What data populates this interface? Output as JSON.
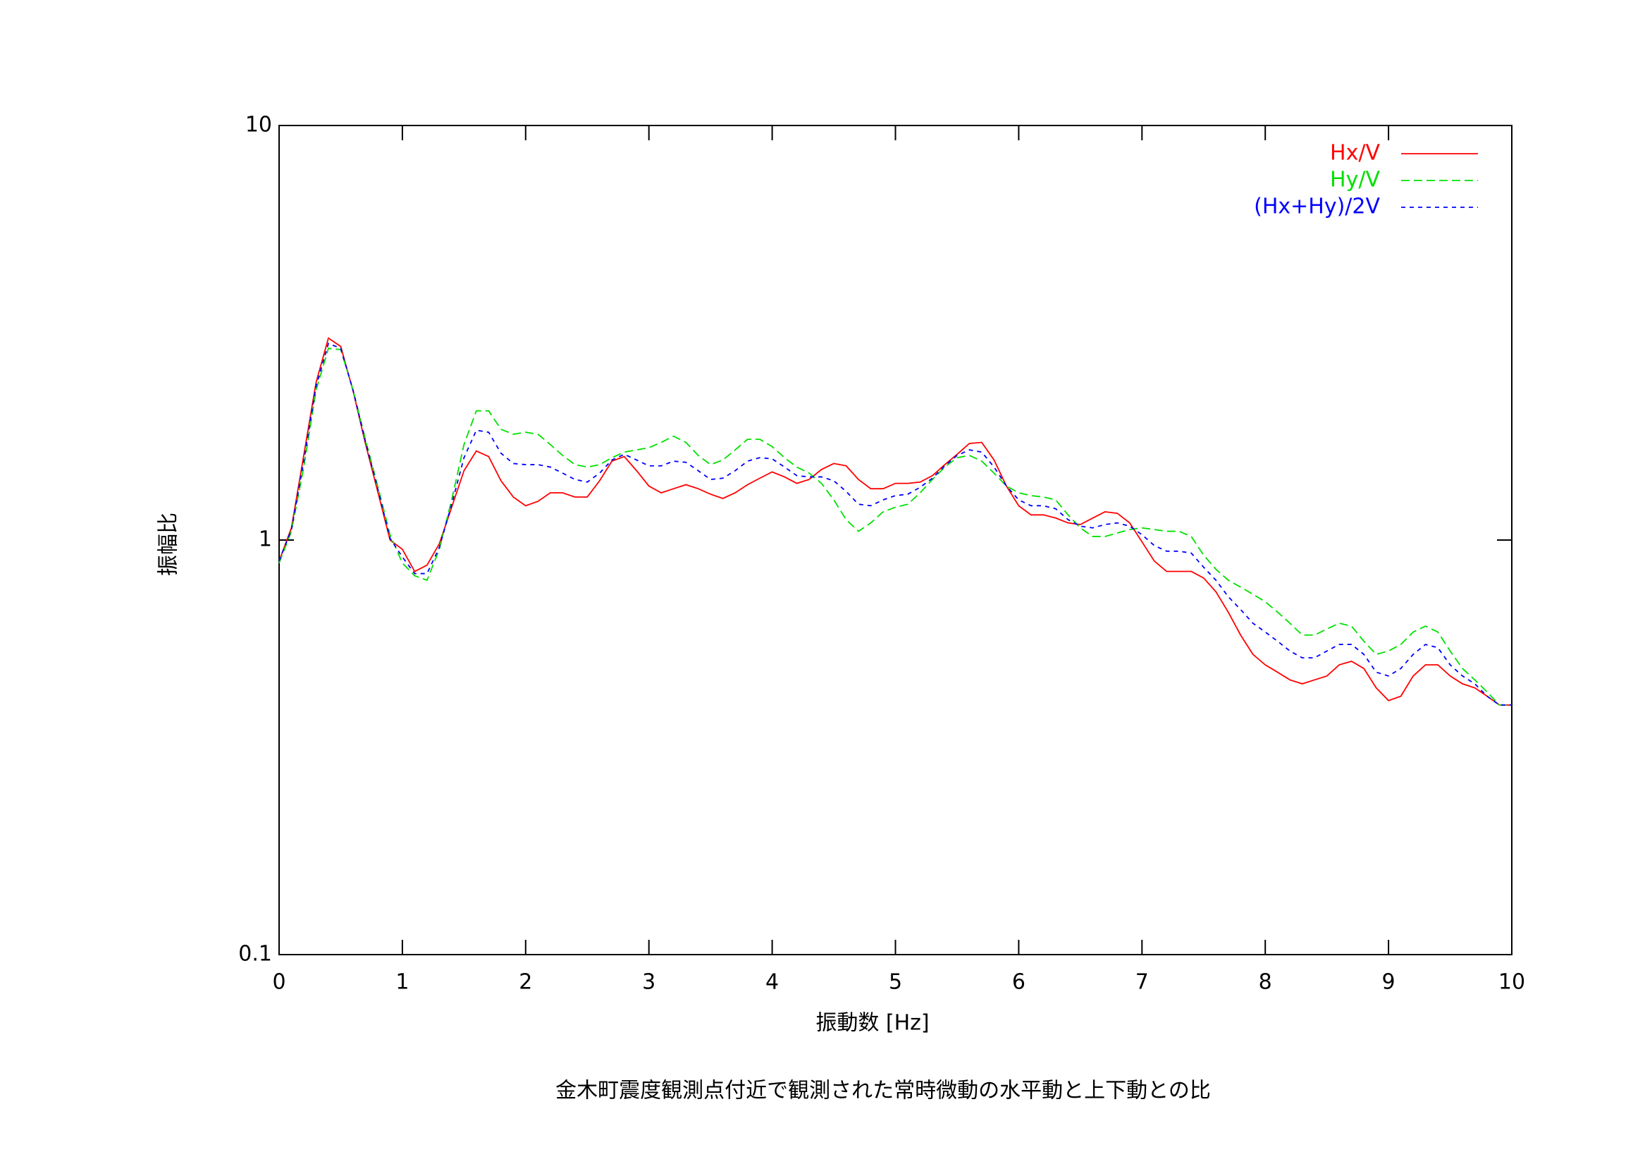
{
  "chart_data": {
    "type": "line",
    "title": "金木町震度観測点付近で観測された常時微動の水平動と上下動との比",
    "x_label": "振動数 [Hz]",
    "y_label": "振幅比",
    "y_scale": "log",
    "xlim": [
      0,
      10
    ],
    "ylim": [
      0.1,
      10
    ],
    "xticks": [
      0,
      1,
      2,
      3,
      4,
      5,
      6,
      7,
      8,
      9,
      10
    ],
    "yticks": [
      0.1,
      1,
      10
    ],
    "legend": "top-right",
    "x": [
      0,
      0.1,
      0.2,
      0.3,
      0.4,
      0.5,
      0.6,
      0.7,
      0.8,
      0.9,
      1,
      1.1,
      1.2,
      1.3,
      1.4,
      1.5,
      1.6,
      1.7,
      1.8,
      1.9,
      2,
      2.1,
      2.2,
      2.3,
      2.4,
      2.5,
      2.6,
      2.7,
      2.8,
      2.9,
      3,
      3.1,
      3.2,
      3.3,
      3.4,
      3.5,
      3.6,
      3.7,
      3.8,
      3.9,
      4,
      4.1,
      4.2,
      4.3,
      4.4,
      4.5,
      4.6,
      4.7,
      4.8,
      4.9,
      5,
      5.1,
      5.2,
      5.3,
      5.4,
      5.5,
      5.6,
      5.7,
      5.8,
      5.9,
      6,
      6.1,
      6.2,
      6.3,
      6.4,
      6.5,
      6.6,
      6.7,
      6.8,
      6.9,
      7,
      7.1,
      7.2,
      7.3,
      7.4,
      7.5,
      7.6,
      7.7,
      7.8,
      7.9,
      8,
      8.1,
      8.2,
      8.3,
      8.4,
      8.5,
      8.6,
      8.7,
      8.8,
      8.9,
      9,
      9.1,
      9.2,
      9.3,
      9.4,
      9.5,
      9.6,
      9.7,
      9.8,
      9.9,
      10
    ],
    "series": [
      {
        "name": "Hx/V",
        "color": "#ff0000",
        "values": [
          0.89,
          1.07,
          1.6,
          2.4,
          3.07,
          2.93,
          2.29,
          1.71,
          1.31,
          1.0,
          0.95,
          0.84,
          0.87,
          0.98,
          1.2,
          1.47,
          1.64,
          1.59,
          1.39,
          1.27,
          1.21,
          1.24,
          1.3,
          1.3,
          1.27,
          1.27,
          1.39,
          1.55,
          1.59,
          1.47,
          1.35,
          1.3,
          1.33,
          1.36,
          1.33,
          1.29,
          1.26,
          1.3,
          1.36,
          1.41,
          1.46,
          1.42,
          1.37,
          1.4,
          1.48,
          1.53,
          1.51,
          1.4,
          1.33,
          1.33,
          1.37,
          1.37,
          1.38,
          1.43,
          1.52,
          1.61,
          1.71,
          1.72,
          1.56,
          1.35,
          1.21,
          1.15,
          1.15,
          1.13,
          1.1,
          1.09,
          1.13,
          1.17,
          1.16,
          1.1,
          0.99,
          0.89,
          0.84,
          0.84,
          0.84,
          0.81,
          0.75,
          0.67,
          0.59,
          0.53,
          0.5,
          0.48,
          0.46,
          0.45,
          0.46,
          0.47,
          0.5,
          0.51,
          0.49,
          0.44,
          0.41,
          0.42,
          0.47,
          0.5,
          0.5,
          0.47,
          0.45,
          0.44,
          0.42,
          0.4,
          0.4
        ]
      },
      {
        "name": "Hy/V",
        "color": "#00e000",
        "values": [
          0.88,
          1.05,
          1.5,
          2.3,
          2.9,
          2.88,
          2.3,
          1.75,
          1.35,
          1.03,
          0.88,
          0.82,
          0.8,
          0.95,
          1.25,
          1.7,
          2.05,
          2.05,
          1.85,
          1.8,
          1.82,
          1.8,
          1.7,
          1.6,
          1.52,
          1.5,
          1.52,
          1.58,
          1.63,
          1.65,
          1.67,
          1.72,
          1.78,
          1.72,
          1.6,
          1.52,
          1.56,
          1.65,
          1.75,
          1.75,
          1.68,
          1.58,
          1.5,
          1.45,
          1.37,
          1.25,
          1.12,
          1.05,
          1.1,
          1.17,
          1.2,
          1.22,
          1.3,
          1.4,
          1.5,
          1.58,
          1.6,
          1.55,
          1.45,
          1.35,
          1.3,
          1.28,
          1.27,
          1.25,
          1.15,
          1.07,
          1.02,
          1.02,
          1.04,
          1.06,
          1.07,
          1.06,
          1.05,
          1.05,
          1.02,
          0.92,
          0.85,
          0.8,
          0.77,
          0.74,
          0.71,
          0.67,
          0.63,
          0.59,
          0.59,
          0.61,
          0.63,
          0.62,
          0.57,
          0.53,
          0.54,
          0.56,
          0.6,
          0.62,
          0.6,
          0.54,
          0.49,
          0.46,
          0.43,
          0.4,
          0.4
        ]
      },
      {
        "name": "(Hx+Hy)/2V",
        "color": "#0000ff",
        "values": [
          0.89,
          1.06,
          1.55,
          2.35,
          2.98,
          2.9,
          2.3,
          1.73,
          1.33,
          1.01,
          0.91,
          0.83,
          0.83,
          0.96,
          1.22,
          1.58,
          1.84,
          1.82,
          1.62,
          1.53,
          1.52,
          1.52,
          1.5,
          1.45,
          1.4,
          1.38,
          1.45,
          1.56,
          1.61,
          1.56,
          1.51,
          1.51,
          1.55,
          1.54,
          1.47,
          1.4,
          1.41,
          1.47,
          1.55,
          1.58,
          1.57,
          1.5,
          1.43,
          1.42,
          1.42,
          1.39,
          1.31,
          1.22,
          1.21,
          1.25,
          1.28,
          1.29,
          1.34,
          1.41,
          1.51,
          1.6,
          1.65,
          1.63,
          1.5,
          1.35,
          1.25,
          1.21,
          1.21,
          1.19,
          1.12,
          1.08,
          1.07,
          1.09,
          1.1,
          1.08,
          1.03,
          0.97,
          0.94,
          0.94,
          0.93,
          0.86,
          0.8,
          0.73,
          0.68,
          0.63,
          0.6,
          0.57,
          0.54,
          0.52,
          0.52,
          0.54,
          0.56,
          0.56,
          0.53,
          0.48,
          0.47,
          0.49,
          0.53,
          0.56,
          0.55,
          0.5,
          0.47,
          0.45,
          0.42,
          0.4,
          0.4
        ]
      }
    ]
  }
}
